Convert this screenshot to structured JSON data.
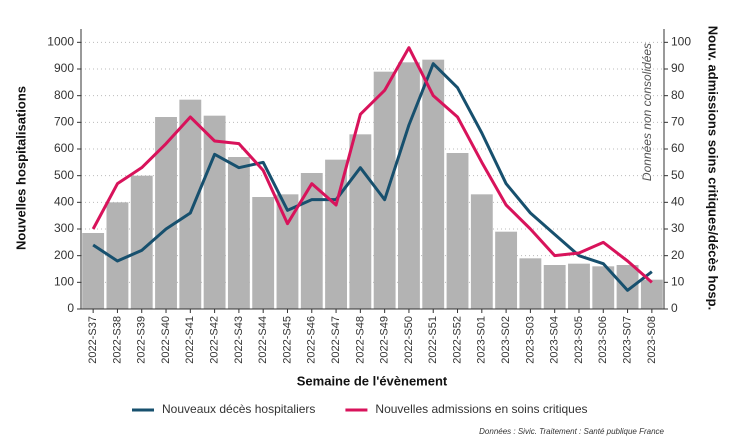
{
  "chart_data": {
    "type": "bar-line",
    "x_label": "Semaine de l'évènement",
    "y_label": "Nouvelles hospitalisations",
    "y2_label": "Nouv. admissions soins critiques/décès hosp.",
    "annotation": "Données non consolidées",
    "source": "Données : Sivic. Traitement : Santé publique France",
    "categories": [
      "2022-S37",
      "2022-S38",
      "2022-S39",
      "2022-S40",
      "2022-S41",
      "2022-S42",
      "2022-S43",
      "2022-S44",
      "2022-S45",
      "2022-S46",
      "2022-S47",
      "2022-S48",
      "2022-S49",
      "2022-S50",
      "2022-S51",
      "2022-S52",
      "2023-S01",
      "2023-S02",
      "2023-S03",
      "2023-S04",
      "2023-S05",
      "2023-S06",
      "2023-S07",
      "2023-S08"
    ],
    "values": [
      285,
      400,
      500,
      720,
      785,
      725,
      570,
      420,
      430,
      510,
      560,
      655,
      890,
      925,
      935,
      585,
      430,
      290,
      190,
      165,
      170,
      160,
      165,
      110
    ],
    "color": "#b3b3b3",
    "series": [
      {
        "name": "Nouveaux décès hospitaliers",
        "color": "#17506e",
        "axis": "y2",
        "values": [
          24,
          18,
          22,
          30,
          36,
          58,
          53,
          55,
          37,
          41,
          41,
          53,
          41,
          69,
          92,
          83,
          66,
          47,
          36,
          28,
          20,
          17,
          7,
          14
        ]
      },
      {
        "name": "Nouvelles admissions en soins critiques",
        "color": "#d8135b",
        "axis": "y2",
        "values": [
          30,
          47,
          53,
          62,
          72,
          63,
          62,
          52,
          32,
          47,
          39,
          73,
          82,
          98,
          80,
          72,
          55,
          39,
          30,
          20,
          21,
          25,
          18,
          10
        ]
      }
    ],
    "ylim": [
      0,
      1050
    ],
    "yticks": [
      0,
      100,
      200,
      300,
      400,
      500,
      600,
      700,
      800,
      900,
      1000
    ],
    "y2lim": [
      0,
      105
    ],
    "y2ticks": [
      0,
      10,
      20,
      30,
      40,
      50,
      60,
      70,
      80,
      90,
      100
    ],
    "grid": true,
    "legend": "bottom"
  }
}
